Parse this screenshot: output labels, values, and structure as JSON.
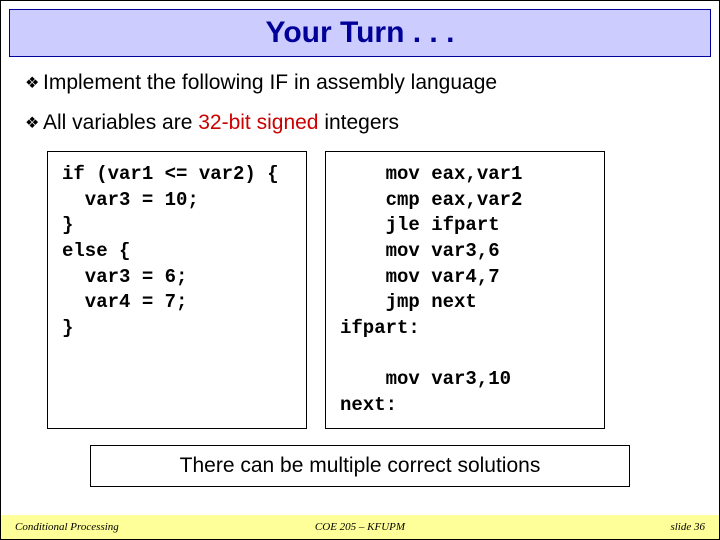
{
  "title": "Your Turn . . .",
  "bullets": [
    {
      "text_before": "Implement the following IF in assembly language",
      "red_text": "",
      "text_after": ""
    },
    {
      "text_before": "All variables are ",
      "red_text": "32-bit signed",
      "text_after": " integers"
    }
  ],
  "code_left": "if (var1 <= var2) {\n  var3 = 10;\n}\nelse {\n  var3 = 6;\n  var4 = 7;\n}",
  "code_right": "    mov eax,var1\n    cmp eax,var2\n    jle ifpart\n    mov var3,6\n    mov var4,7\n    jmp next\nifpart:\n\n    mov var3,10\nnext:",
  "note": "There can be multiple correct solutions",
  "footer": {
    "left": "Conditional Processing",
    "center": "COE 205 – KFUPM",
    "right": "slide 36"
  },
  "colors": {
    "title_bg": "#ccccff",
    "title_text": "#000099",
    "red": "#cc0000",
    "footer_bg": "#ffff99",
    "border": "#000000"
  },
  "bullet_glyph": "❖"
}
